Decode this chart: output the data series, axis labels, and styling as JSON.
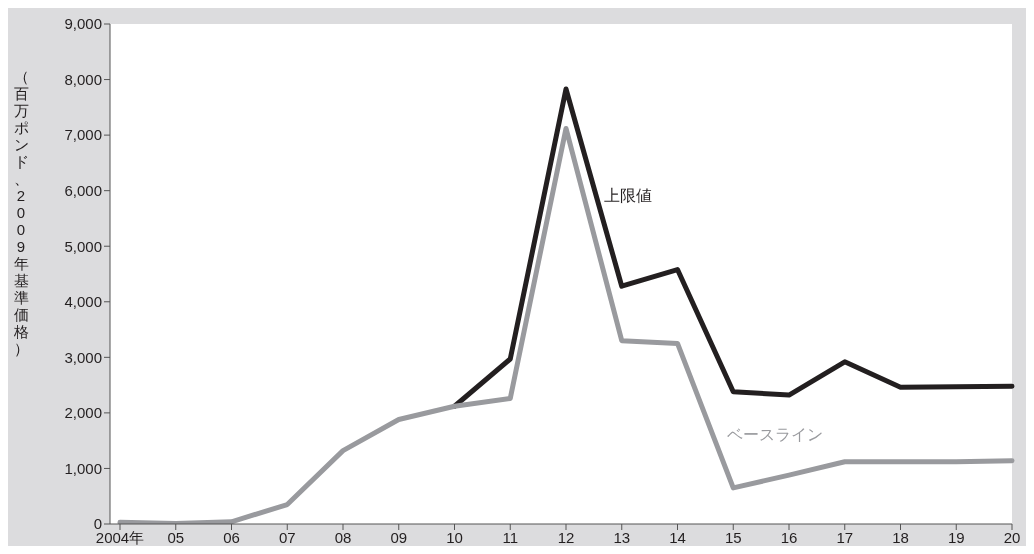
{
  "chart_data": {
    "type": "line",
    "ylabel": "（百万ポンド、2009年基準価格）",
    "categories": [
      "2004年",
      "05",
      "06",
      "07",
      "08",
      "09",
      "10",
      "11",
      "12",
      "13",
      "14",
      "15",
      "16",
      "17",
      "18",
      "19",
      "20"
    ],
    "series": [
      {
        "name": "上限値",
        "color": "#231f20",
        "values": [
          null,
          null,
          null,
          null,
          null,
          null,
          2120,
          2970,
          7830,
          4280,
          4580,
          2380,
          2320,
          2920,
          2460,
          2470,
          2480
        ]
      },
      {
        "name": "ベースライン",
        "color": "#999a9e",
        "values": [
          30,
          10,
          40,
          350,
          1320,
          1880,
          2120,
          2260,
          7120,
          3300,
          3250,
          650,
          880,
          1120,
          1120,
          1120,
          1140
        ]
      }
    ],
    "ylim": [
      0,
      9000
    ],
    "yticks": [
      0,
      {
        "value": 1000,
        "label": "1,000"
      },
      {
        "value": 2000,
        "label": "2,000"
      },
      {
        "value": 3000,
        "label": "3,000"
      },
      {
        "value": 4000,
        "label": "4,000"
      },
      {
        "value": 5000,
        "label": "5,000"
      },
      {
        "value": 6000,
        "label": "6,000"
      },
      {
        "value": 7000,
        "label": "7,000"
      },
      {
        "value": 8000,
        "label": "8,000"
      },
      {
        "value": 9000,
        "label": "9,000"
      }
    ],
    "grid": false,
    "legend": false,
    "marker": "none",
    "line_style": "solid"
  }
}
